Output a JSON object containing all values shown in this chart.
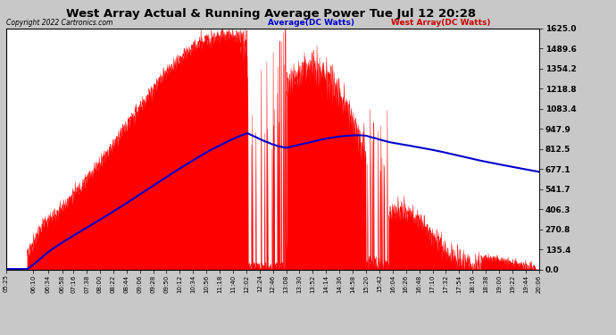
{
  "title": "West Array Actual & Running Average Power Tue Jul 12 20:28",
  "copyright": "Copyright 2022 Cartronics.com",
  "legend_avg": "Average(DC Watts)",
  "legend_west": "West Array(DC Watts)",
  "y_ticks": [
    0.0,
    135.4,
    270.8,
    406.3,
    541.7,
    677.1,
    812.5,
    947.9,
    1083.4,
    1218.8,
    1354.2,
    1489.6,
    1625.0
  ],
  "ylim": [
    0,
    1625.0
  ],
  "fig_bg_color": "#c8c8c8",
  "plot_bg_color": "#ffffff",
  "grid_color": "#cccccc",
  "actual_color": "#ff0000",
  "avg_color": "#0000cc",
  "title_color": "#000000",
  "copyright_color": "#000000",
  "legend_avg_color": "#0000cc",
  "legend_west_color": "#cc0000",
  "x_labels": [
    "05:25",
    "06:10",
    "06:34",
    "06:58",
    "07:16",
    "07:38",
    "08:00",
    "08:22",
    "08:44",
    "09:06",
    "09:28",
    "09:50",
    "10:12",
    "10:34",
    "10:56",
    "11:18",
    "11:40",
    "12:02",
    "12:24",
    "12:46",
    "13:08",
    "13:30",
    "13:52",
    "14:14",
    "14:36",
    "14:58",
    "15:20",
    "15:42",
    "16:04",
    "16:26",
    "16:48",
    "17:10",
    "17:32",
    "17:54",
    "18:16",
    "18:38",
    "19:00",
    "19:22",
    "19:44",
    "20:06"
  ]
}
